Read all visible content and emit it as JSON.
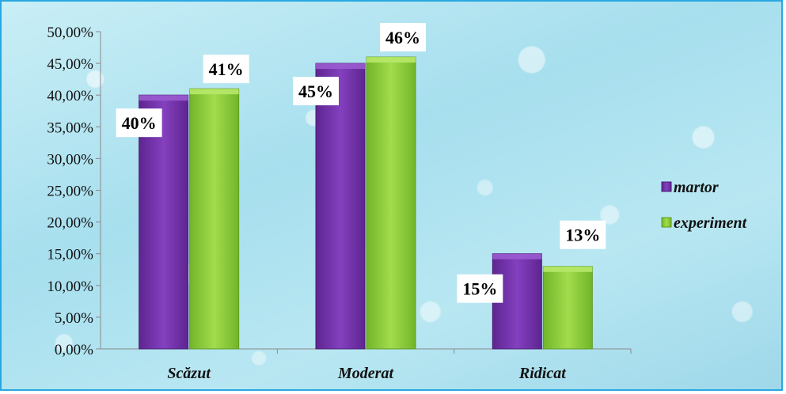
{
  "chart_data": {
    "type": "bar",
    "categories": [
      "Scăzut",
      "Moderat",
      "Ridicat"
    ],
    "series": [
      {
        "name": "martor",
        "values": [
          40,
          45,
          15
        ],
        "labels": [
          "40%",
          "45%",
          "15%"
        ],
        "color": "#7a35b0"
      },
      {
        "name": "experiment",
        "values": [
          41,
          46,
          13
        ],
        "labels": [
          "41%",
          "46%",
          "13%"
        ],
        "color": "#8fd03a"
      }
    ],
    "yticks": [
      "0,00%",
      "5,00%",
      "10,00%",
      "15,00%",
      "20,00%",
      "25,00%",
      "30,00%",
      "35,00%",
      "40,00%",
      "45,00%",
      "50,00%"
    ],
    "ylim": [
      0,
      50
    ],
    "ytick_step": 5,
    "legend_position": "right",
    "grid": false,
    "title": "",
    "xlabel": "",
    "ylabel": ""
  }
}
